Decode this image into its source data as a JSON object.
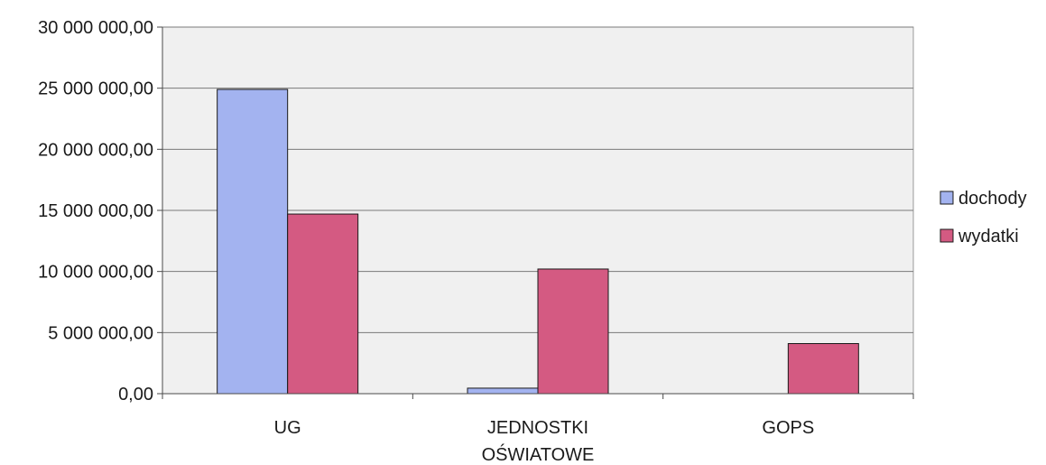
{
  "chart_data": {
    "type": "bar",
    "title": "",
    "xlabel": "",
    "ylabel": "",
    "categories": [
      [
        "UG"
      ],
      [
        "JEDNOSTKI",
        "OŚWIATOWE"
      ],
      [
        "GOPS"
      ]
    ],
    "series": [
      {
        "name": "dochody",
        "color": "#a3b3f0",
        "values": [
          24900000,
          450000,
          0
        ]
      },
      {
        "name": "wydatki",
        "color": "#d45a82",
        "values": [
          14700000,
          10200000,
          4100000
        ]
      }
    ],
    "ylim": [
      0,
      30000000
    ],
    "yticks": [
      {
        "value": 0,
        "label": "0,00"
      },
      {
        "value": 5000000,
        "label": "5 000 000,00"
      },
      {
        "value": 10000000,
        "label": "10 000 000,00"
      },
      {
        "value": 15000000,
        "label": "15 000 000,00"
      },
      {
        "value": 20000000,
        "label": "20 000 000,00"
      },
      {
        "value": 25000000,
        "label": "25 000 000,00"
      },
      {
        "value": 30000000,
        "label": "30 000 000,00"
      }
    ],
    "grid": true,
    "legend_position": "right",
    "plot_background": "#f0f0f0",
    "gridline_color": "#7a7a7a"
  }
}
